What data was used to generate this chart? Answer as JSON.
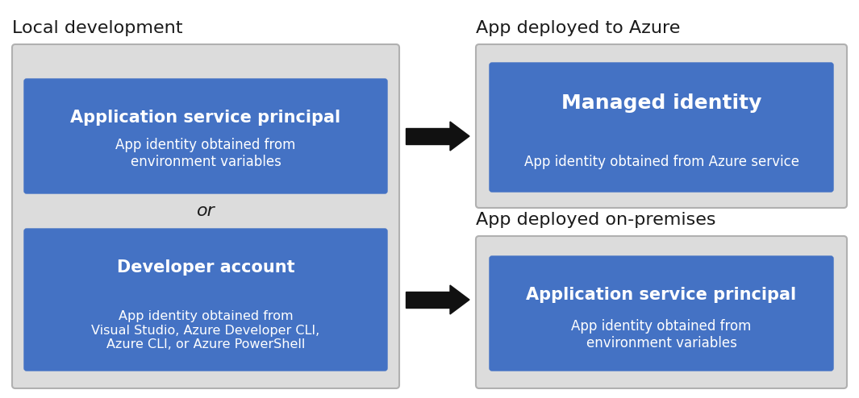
{
  "bg_color": "#ffffff",
  "box_bg_light": "#dcdcdc",
  "box_bg_blue": "#4472C4",
  "text_white": "#ffffff",
  "text_black": "#1a1a1a",
  "arrow_color": "#111111",
  "local_dev_label": "Local development",
  "azure_label": "App deployed to Azure",
  "onprem_label": "App deployed on-premises",
  "box1_title": "Application service principal",
  "box1_sub": "App identity obtained from\nenvironment variables",
  "or_text": "or",
  "box2_title": "Developer account",
  "box2_sub": "App identity obtained from\nVisual Studio, Azure Developer CLI,\nAzure CLI, or Azure PowerShell",
  "box3_title": "Managed identity",
  "box3_sub": "App identity obtained from Azure service",
  "box4_title": "Application service principal",
  "box4_sub": "App identity obtained from\nenvironment variables"
}
